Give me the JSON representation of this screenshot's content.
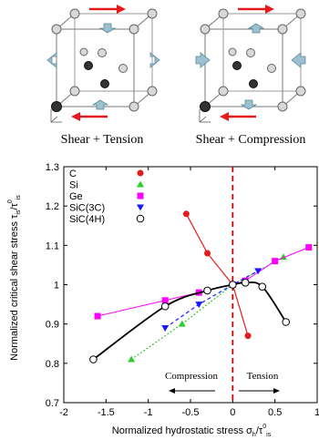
{
  "panels": {
    "left_caption": "Shear + Tension",
    "right_caption": "Shear + Compression"
  },
  "colors": {
    "C": "#e41a1c",
    "Si": "#2ecc2e",
    "Ge": "#ff00ff",
    "SiC3C": "#1a1aff",
    "SiC4H": "#000000",
    "arrow": "#e41a1c",
    "cube_arrow": "#8fb8c8",
    "zero_line": "#cc0000"
  },
  "chart_data": {
    "type": "line",
    "title": "",
    "xlabel": "Normalized hydrostatic stress σh/τ0is",
    "ylabel": "Normalized critical shear stress τis/τ0is",
    "xlim": [
      -2,
      1
    ],
    "ylim": [
      0.7,
      1.3
    ],
    "xticks": [
      -2,
      -1.5,
      -1,
      -0.5,
      0,
      0.5,
      1
    ],
    "yticks": [
      0.7,
      0.8,
      0.9,
      1,
      1.1,
      1.2,
      1.3
    ],
    "xtick_labels": [
      "-2",
      "-1.5",
      "-1",
      "-0.5",
      "0",
      "0.5",
      "1"
    ],
    "ytick_labels": [
      "0.7",
      "0.8",
      "0.9",
      "1",
      "1.1",
      "1.2",
      "1.3"
    ],
    "legend_position": "top-left",
    "series": [
      {
        "name": "C",
        "marker": "circle-filled",
        "line": "solid",
        "x": [
          -0.55,
          -0.3,
          0,
          0.18
        ],
        "y": [
          1.18,
          1.08,
          1.0,
          0.87
        ]
      },
      {
        "name": "Si",
        "marker": "triangle-up",
        "line": "dotted",
        "x": [
          -1.2,
          -0.6,
          0,
          0.6
        ],
        "y": [
          0.81,
          0.9,
          1.0,
          1.07
        ]
      },
      {
        "name": "Ge",
        "marker": "square",
        "line": "solid",
        "x": [
          -1.6,
          -0.8,
          -0.4,
          0,
          0.15,
          0.5,
          0.9
        ],
        "y": [
          0.92,
          0.96,
          0.98,
          1.0,
          1.01,
          1.06,
          1.095
        ]
      },
      {
        "name": "SiC(3C)",
        "marker": "triangle-down",
        "line": "dashed",
        "x": [
          -0.8,
          -0.4,
          0,
          0.3
        ],
        "y": [
          0.89,
          0.95,
          1.0,
          1.035
        ]
      },
      {
        "name": "SiC(4H)",
        "marker": "circle-open",
        "line": "solid",
        "x": [
          -1.65,
          -0.8,
          -0.3,
          0,
          0.15,
          0.35,
          0.63
        ],
        "y": [
          0.81,
          0.945,
          0.985,
          1.0,
          1.005,
          0.995,
          0.905
        ]
      }
    ],
    "zero_line_x": 0,
    "annotations": {
      "compression": "Compression",
      "tension": "Tension"
    }
  }
}
